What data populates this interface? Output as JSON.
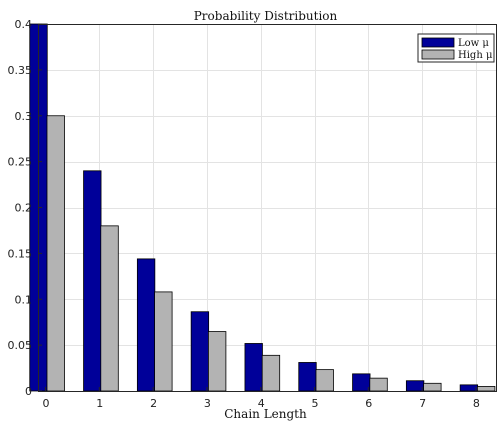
{
  "chart_data": {
    "type": "bar",
    "title": "Probability Distribution",
    "xlabel": "Chain Length",
    "ylabel": "",
    "categories": [
      "0",
      "1",
      "2",
      "3",
      "4",
      "5",
      "6",
      "7",
      "8"
    ],
    "series": [
      {
        "name": "Low μ",
        "color": "#000099",
        "values": [
          0.4,
          0.24,
          0.144,
          0.0864,
          0.0518,
          0.0311,
          0.0187,
          0.0112,
          0.0067
        ]
      },
      {
        "name": "High μ",
        "color": "#b3b3b3",
        "values": [
          0.3,
          0.18,
          0.108,
          0.0648,
          0.0389,
          0.0233,
          0.014,
          0.0084,
          0.005
        ]
      }
    ],
    "ylim": [
      0,
      0.4
    ],
    "yticks": [
      "0",
      "0.05",
      "0.1",
      "0.15",
      "0.2",
      "0.25",
      "0.3",
      "0.35",
      "0.4"
    ],
    "ytick_values": [
      0,
      0.05,
      0.1,
      0.15,
      0.2,
      0.25,
      0.3,
      0.35,
      0.4
    ],
    "grid": true,
    "legend_position": "top-right"
  }
}
